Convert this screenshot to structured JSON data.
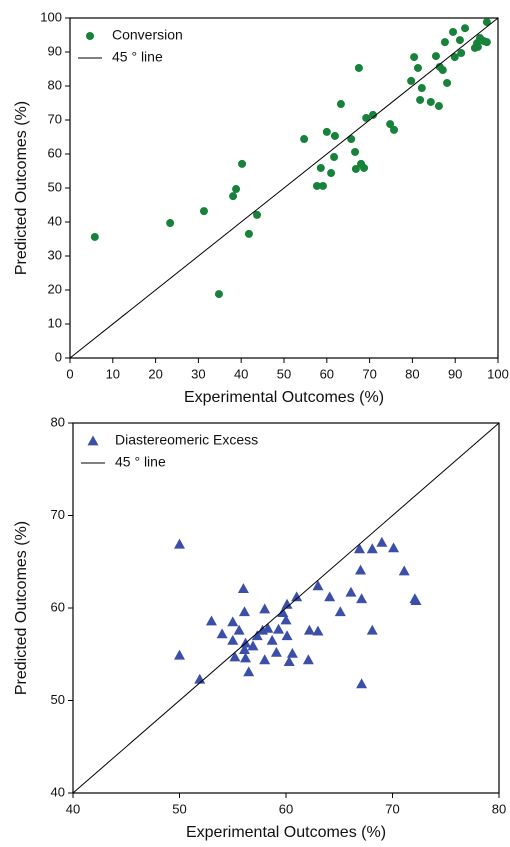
{
  "chart_data": [
    {
      "type": "scatter",
      "xlabel": "Experimental Outcomes (%)",
      "ylabel": "Predicted Outcomes (%)",
      "xlim": [
        0,
        100
      ],
      "ylim": [
        0,
        100
      ],
      "xticks": [
        0,
        10,
        20,
        30,
        40,
        50,
        60,
        70,
        80,
        90,
        100
      ],
      "yticks": [
        0,
        10,
        20,
        30,
        40,
        50,
        60,
        70,
        80,
        90,
        100
      ],
      "legend": "upper left",
      "series": [
        {
          "name": "Conversion",
          "color": "#17823a",
          "marker": "circle",
          "x": [
            5.8,
            23.4,
            31.3,
            34.8,
            38.1,
            38.8,
            40.2,
            41.8,
            43.7,
            54.7,
            57.7,
            59.1,
            58.6,
            60,
            61,
            61.7,
            61.9,
            63.3,
            65.7,
            66.6,
            66.8,
            67.5,
            68,
            68.7,
            69.2,
            70.8,
            74.8,
            75.7,
            79.7,
            80.4,
            81.3,
            81.8,
            82.2,
            84.3,
            85.5,
            86.2,
            86.4,
            87.1,
            87.6,
            88.1,
            89.5,
            89.9,
            91.1,
            91.4,
            92.3,
            94.6,
            95.1,
            95.8,
            96.7,
            97.4,
            97.4,
            95.3
          ],
          "values": [
            35.6,
            39.7,
            43.2,
            18.8,
            47.6,
            49.7,
            57.1,
            36.5,
            42.1,
            64.4,
            50.6,
            50.6,
            55.9,
            66.5,
            54.4,
            59.1,
            65.3,
            74.7,
            64.4,
            60.6,
            55.6,
            85.3,
            57.1,
            55.9,
            70.6,
            71.5,
            68.8,
            67.1,
            81.5,
            88.5,
            85.3,
            75.9,
            79.4,
            75.3,
            88.8,
            74.1,
            85.6,
            84.7,
            92.9,
            80.9,
            95.9,
            88.5,
            93.5,
            89.7,
            97,
            91.2,
            92.6,
            94.1,
            93.2,
            98.8,
            92.9,
            91.5
          ]
        },
        {
          "name": "45 ° line",
          "color": "#000000",
          "marker": "line"
        }
      ]
    },
    {
      "type": "scatter",
      "xlabel": "Experimental Outcomes (%)",
      "ylabel": "Predicted Outcomes (%)",
      "xlim": [
        40,
        80
      ],
      "ylim": [
        40,
        80
      ],
      "xticks": [
        40,
        50,
        60,
        70,
        80
      ],
      "yticks": [
        40,
        50,
        60,
        70,
        80
      ],
      "legend": "upper left",
      "series": [
        {
          "name": "Diastereomeric Excess",
          "color": "#3b4fa8",
          "marker": "triangle",
          "x": [
            50,
            50,
            51.9,
            53,
            54,
            55,
            55,
            55.2,
            55.6,
            56,
            56.1,
            56.1,
            56.2,
            56.2,
            56.5,
            56.9,
            57.3,
            57.8,
            58,
            58,
            58.3,
            58.7,
            59.1,
            59.3,
            59.7,
            60,
            60.1,
            60.1,
            60.3,
            60.6,
            61,
            62.1,
            62.2,
            63,
            63,
            64.1,
            65.1,
            66.1,
            66.9,
            67,
            67.1,
            67.1,
            68.1,
            68.1,
            69,
            70.1,
            71.1,
            72.1,
            72.2
          ],
          "values": [
            66.9,
            54.9,
            52.3,
            58.6,
            57.2,
            58.5,
            56.5,
            54.7,
            57.6,
            62.1,
            59.6,
            55.5,
            54.6,
            56.2,
            53.1,
            55.9,
            57,
            57.6,
            59.9,
            54.4,
            57.8,
            56.5,
            55.2,
            57.7,
            59.5,
            58.7,
            60.4,
            57,
            54.2,
            55.1,
            61.2,
            54.4,
            57.6,
            62.4,
            57.5,
            61.2,
            59.6,
            61.7,
            66.4,
            64.1,
            61,
            51.8,
            66.4,
            57.6,
            67.1,
            66.5,
            64,
            61,
            60.8
          ]
        },
        {
          "name": "45 ° line",
          "color": "#000000",
          "marker": "line"
        }
      ]
    }
  ]
}
